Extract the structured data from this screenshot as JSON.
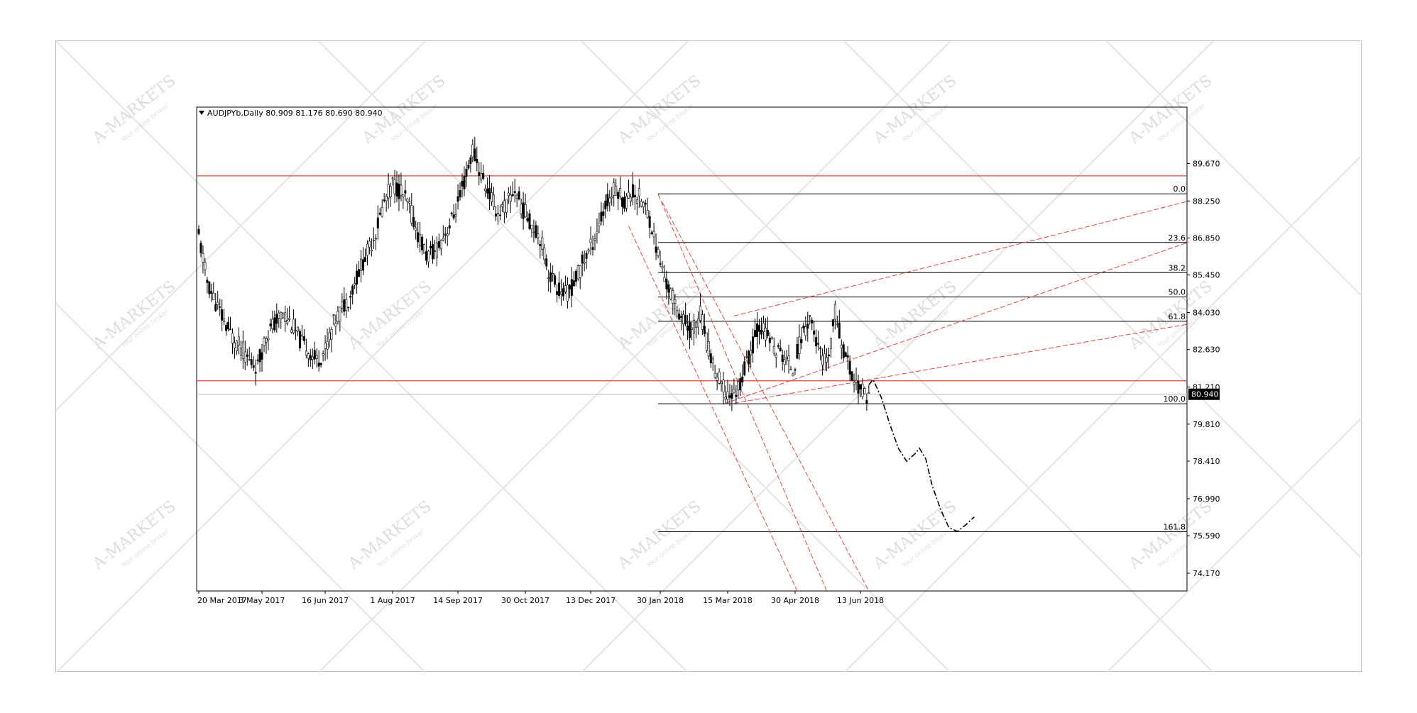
{
  "watermark": {
    "brand": "A-MARKETS",
    "tagline": "Your online broker"
  },
  "chart_data": {
    "type": "candlestick",
    "title": "AUDJPYb,Daily  80.909 81.176 80.690 80.940",
    "symbol": "AUDJPYb",
    "timeframe": "Daily",
    "ohlc_last": {
      "open": 80.909,
      "high": 81.176,
      "low": 80.69,
      "close": 80.94
    },
    "current_price_label": "80.940",
    "ylim": [
      73.5,
      91.8
    ],
    "y_ticks": [
      "89.670",
      "88.250",
      "86.850",
      "85.450",
      "84.030",
      "82.630",
      "81.210",
      "79.810",
      "78.410",
      "76.990",
      "75.590",
      "74.170"
    ],
    "y_tick_values": [
      89.67,
      88.25,
      86.85,
      85.45,
      84.03,
      82.63,
      81.21,
      79.81,
      78.41,
      76.99,
      75.59,
      74.17
    ],
    "x_ticks": [
      "20 Mar 2017",
      "3 May 2017",
      "16 Jun 2017",
      "1 Aug 2017",
      "14 Sep 2017",
      "30 Oct 2017",
      "13 Dec 2017",
      "30 Jan 2018",
      "15 Mar 2018",
      "30 Apr 2018",
      "13 Jun 2018"
    ],
    "x_tick_index": [
      0,
      30,
      60,
      92,
      123,
      155,
      186,
      219,
      251,
      283,
      314
    ],
    "total_bars_axis": 470,
    "close_path": [
      [
        0,
        86.9
      ],
      [
        4,
        85.2
      ],
      [
        8,
        84.4
      ],
      [
        12,
        83.7
      ],
      [
        16,
        83.1
      ],
      [
        20,
        82.7
      ],
      [
        24,
        82.2
      ],
      [
        28,
        82.0
      ],
      [
        32,
        83.2
      ],
      [
        36,
        83.6
      ],
      [
        40,
        84.0
      ],
      [
        44,
        83.6
      ],
      [
        48,
        83.0
      ],
      [
        52,
        82.6
      ],
      [
        56,
        82.2
      ],
      [
        60,
        82.6
      ],
      [
        64,
        83.6
      ],
      [
        68,
        84.2
      ],
      [
        72,
        84.7
      ],
      [
        76,
        85.6
      ],
      [
        80,
        86.3
      ],
      [
        84,
        87.1
      ],
      [
        88,
        88.2
      ],
      [
        92,
        88.9
      ],
      [
        96,
        88.6
      ],
      [
        100,
        88.0
      ],
      [
        104,
        87.0
      ],
      [
        108,
        86.2
      ],
      [
        112,
        86.3
      ],
      [
        116,
        86.9
      ],
      [
        120,
        87.5
      ],
      [
        124,
        88.4
      ],
      [
        128,
        89.5
      ],
      [
        130,
        90.2
      ],
      [
        134,
        89.2
      ],
      [
        138,
        88.5
      ],
      [
        142,
        87.8
      ],
      [
        146,
        88.1
      ],
      [
        150,
        88.7
      ],
      [
        154,
        87.9
      ],
      [
        158,
        87.4
      ],
      [
        162,
        86.9
      ],
      [
        166,
        85.6
      ],
      [
        170,
        85.0
      ],
      [
        174,
        84.7
      ],
      [
        178,
        85.1
      ],
      [
        182,
        85.9
      ],
      [
        186,
        86.5
      ],
      [
        190,
        87.4
      ],
      [
        194,
        88.2
      ],
      [
        198,
        88.8
      ],
      [
        202,
        88.2
      ],
      [
        206,
        88.6
      ],
      [
        210,
        88.3
      ],
      [
        214,
        87.6
      ],
      [
        218,
        86.2
      ],
      [
        222,
        85.1
      ],
      [
        226,
        84.4
      ],
      [
        230,
        83.7
      ],
      [
        234,
        83.3
      ],
      [
        238,
        84.0
      ],
      [
        242,
        82.6
      ],
      [
        246,
        81.6
      ],
      [
        250,
        81.0
      ],
      [
        254,
        80.9
      ],
      [
        258,
        81.6
      ],
      [
        262,
        82.6
      ],
      [
        266,
        83.6
      ],
      [
        270,
        83.1
      ],
      [
        274,
        82.6
      ],
      [
        278,
        82.3
      ],
      [
        282,
        81.9
      ],
      [
        286,
        83.1
      ],
      [
        290,
        83.9
      ],
      [
        294,
        82.6
      ],
      [
        298,
        82.0
      ],
      [
        302,
        84.0
      ],
      [
        306,
        82.6
      ],
      [
        310,
        81.6
      ],
      [
        314,
        81.1
      ],
      [
        318,
        80.9
      ]
    ],
    "horizontal_levels": [
      {
        "value": 89.2,
        "color": "#e8453c"
      },
      {
        "value": 81.45,
        "color": "#e8453c"
      },
      {
        "value": 80.94,
        "color": "#c8c8c8"
      }
    ],
    "fibonacci": {
      "levels": [
        "0.0",
        "23.6",
        "38.2",
        "50.0",
        "61.8",
        "100.0",
        "161.8"
      ],
      "level_values": [
        88.52,
        86.68,
        85.54,
        84.62,
        83.7,
        80.58,
        75.74
      ],
      "start_index": 218,
      "color": "#000000"
    },
    "channel_lines": [
      {
        "from": [
          250,
          80.6
        ],
        "to": [
          470,
          86.7
        ],
        "color": "#e8453c"
      },
      {
        "from": [
          254,
          83.9
        ],
        "to": [
          470,
          88.25
        ],
        "color": "#e8453c"
      },
      {
        "from": [
          254,
          80.6
        ],
        "to": [
          470,
          83.6
        ],
        "color": "#e8453c"
      },
      {
        "from": [
          218,
          88.5
        ],
        "to": [
          298,
          73.5
        ],
        "color": "#e8453c"
      },
      {
        "from": [
          220,
          88.2
        ],
        "to": [
          318,
          73.5
        ],
        "color": "#e8453c"
      },
      {
        "from": [
          204,
          87.3
        ],
        "to": [
          284,
          73.5
        ],
        "color": "#e8453c"
      }
    ],
    "forecast_path": [
      [
        318,
        81.3
      ],
      [
        320,
        81.5
      ],
      [
        324,
        80.8
      ],
      [
        328,
        79.8
      ],
      [
        332,
        78.9
      ],
      [
        336,
        78.4
      ],
      [
        340,
        78.7
      ],
      [
        342,
        78.9
      ],
      [
        345,
        78.5
      ],
      [
        348,
        77.5
      ],
      [
        352,
        76.6
      ],
      [
        356,
        75.9
      ],
      [
        360,
        75.75
      ],
      [
        364,
        76.0
      ],
      [
        368,
        76.3
      ]
    ]
  }
}
